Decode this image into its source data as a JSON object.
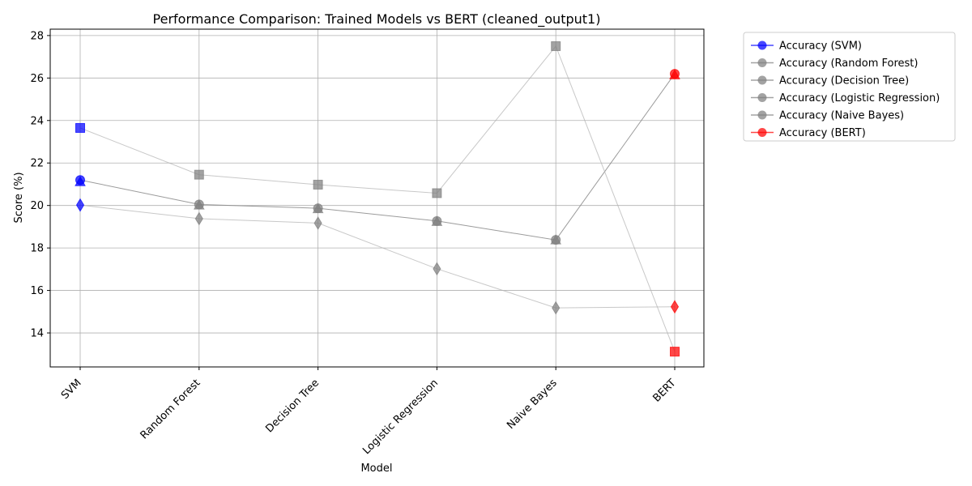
{
  "chart_data": {
    "type": "line",
    "title": "Performance Comparison: Trained Models vs BERT (cleaned_output1)",
    "xlabel": "Model",
    "ylabel": "Score (%)",
    "categories": [
      "SVM",
      "Random Forest",
      "Decision Tree",
      "Logistic Regression",
      "Naive Bayes",
      "BERT"
    ],
    "ylim": [
      12.4,
      28.3
    ],
    "yticks": [
      14,
      16,
      18,
      20,
      22,
      24,
      26,
      28
    ],
    "grid": true,
    "legend_position": "outside-top-right",
    "highlight_colors": {
      "SVM": "#0000ff",
      "BERT": "#ff0000",
      "default": "#808080"
    },
    "metric_lines": [
      {
        "marker": "circle",
        "values": [
          21.2,
          20.05,
          19.87,
          19.27,
          18.38,
          26.2
        ]
      },
      {
        "marker": "triangle",
        "values": [
          21.12,
          20.02,
          19.85,
          19.25,
          18.38,
          26.15
        ]
      },
      {
        "marker": "square",
        "values": [
          23.65,
          21.45,
          20.98,
          20.58,
          27.5,
          13.12
        ]
      },
      {
        "marker": "diamond",
        "values": [
          20.02,
          19.38,
          19.17,
          17.02,
          15.18,
          15.23
        ]
      }
    ],
    "legend": [
      {
        "label": "Accuracy (SVM)",
        "color": "#0000ff"
      },
      {
        "label": "Accuracy (Random Forest)",
        "color": "#808080"
      },
      {
        "label": "Accuracy (Decision Tree)",
        "color": "#808080"
      },
      {
        "label": "Accuracy (Logistic Regression)",
        "color": "#808080"
      },
      {
        "label": "Accuracy (Naive Bayes)",
        "color": "#808080"
      },
      {
        "label": "Accuracy (BERT)",
        "color": "#ff0000"
      }
    ]
  }
}
